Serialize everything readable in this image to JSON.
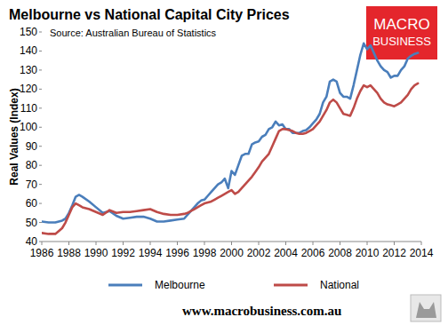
{
  "chart_data": {
    "type": "line",
    "title": "Melbourne vs National Capital City Prices",
    "subtitle": "Source: Australian Bureau of Statistics",
    "y_label": "Real Values (Index)",
    "logo_text": [
      "MACRO",
      "BUSINESS"
    ],
    "footer": "www.macrobusiness.com.au",
    "x": [
      1986,
      1986.5,
      1987,
      1987.5,
      1987.75,
      1988,
      1988.25,
      1988.5,
      1988.75,
      1989,
      1989.5,
      1990,
      1990.5,
      1991,
      1991.5,
      1992,
      1992.5,
      1993,
      1993.5,
      1994,
      1994.5,
      1995,
      1995.5,
      1996,
      1996.5,
      1996.75,
      1997,
      1997.25,
      1997.5,
      1997.75,
      1998,
      1998.25,
      1998.5,
      1998.75,
      1999,
      1999.25,
      1999.5,
      1999.75,
      2000,
      2000.25,
      2000.5,
      2000.75,
      2001,
      2001.25,
      2001.5,
      2001.75,
      2002,
      2002.25,
      2002.5,
      2002.75,
      2003,
      2003.25,
      2003.5,
      2003.75,
      2004,
      2004.25,
      2004.5,
      2004.75,
      2005,
      2005.25,
      2005.5,
      2005.75,
      2006,
      2006.25,
      2006.5,
      2006.75,
      2007,
      2007.25,
      2007.5,
      2007.75,
      2008,
      2008.25,
      2008.5,
      2008.75,
      2009,
      2009.25,
      2009.5,
      2009.75,
      2010,
      2010.25,
      2010.5,
      2010.75,
      2011,
      2011.25,
      2011.5,
      2011.75,
      2012,
      2012.25,
      2012.5,
      2012.75,
      2013,
      2013.25,
      2013.5,
      2013.75
    ],
    "series": [
      {
        "name": "Melbourne",
        "color": "#4a7ebb",
        "values": [
          50.5,
          50,
          50,
          51,
          52,
          55,
          59,
          63.5,
          64.5,
          63.5,
          61,
          58,
          55,
          56,
          53.5,
          52,
          52.5,
          53,
          53,
          52,
          50.5,
          50.5,
          51,
          51.5,
          52,
          54,
          56,
          58,
          60,
          61.5,
          62,
          64,
          66,
          68,
          70,
          71,
          73,
          68,
          77,
          75,
          80,
          85,
          86,
          86,
          91,
          92,
          92.5,
          95,
          96,
          99,
          100,
          103,
          101,
          101.5,
          99,
          99,
          97,
          97,
          97,
          98,
          98.5,
          100,
          102,
          104,
          107,
          113,
          116,
          124,
          125,
          124,
          118,
          116,
          116,
          115,
          122,
          130,
          138,
          144,
          141,
          143,
          139,
          135,
          132,
          130,
          129,
          126,
          127,
          127,
          130,
          132,
          136,
          137.5,
          138.5,
          139
        ]
      },
      {
        "name": "National",
        "color": "#be4b48",
        "values": [
          44.5,
          44,
          44,
          47,
          50,
          54,
          58,
          60,
          59,
          58,
          57,
          55.5,
          54,
          56.5,
          55,
          55.5,
          55.5,
          56,
          56.5,
          57,
          55.5,
          54.5,
          54,
          54,
          54.5,
          55,
          56,
          57,
          58,
          59,
          60,
          60.5,
          61,
          62,
          63,
          64,
          65,
          66,
          67,
          65,
          66,
          68,
          70,
          72,
          74,
          76.5,
          79,
          82,
          84,
          86,
          90,
          94,
          98,
          99,
          99,
          98.5,
          98,
          97,
          96.5,
          96.5,
          97,
          98,
          99,
          101,
          103,
          106,
          109,
          113,
          114.5,
          113,
          110,
          107,
          106.5,
          106,
          110,
          115,
          119,
          122,
          121,
          122,
          120,
          118,
          115,
          113,
          112,
          111.5,
          111,
          112,
          113,
          115,
          117,
          120,
          122,
          123
        ]
      }
    ],
    "xlim": [
      1986,
      2014
    ],
    "xticks": [
      1986,
      1988,
      1990,
      1992,
      1994,
      1996,
      1998,
      2000,
      2002,
      2004,
      2006,
      2008,
      2010,
      2012,
      2014
    ],
    "ylim": [
      40,
      150
    ],
    "yticks": [
      40,
      50,
      60,
      70,
      80,
      90,
      100,
      110,
      120,
      130,
      140,
      150
    ],
    "grid": false,
    "legend": "bottom"
  }
}
